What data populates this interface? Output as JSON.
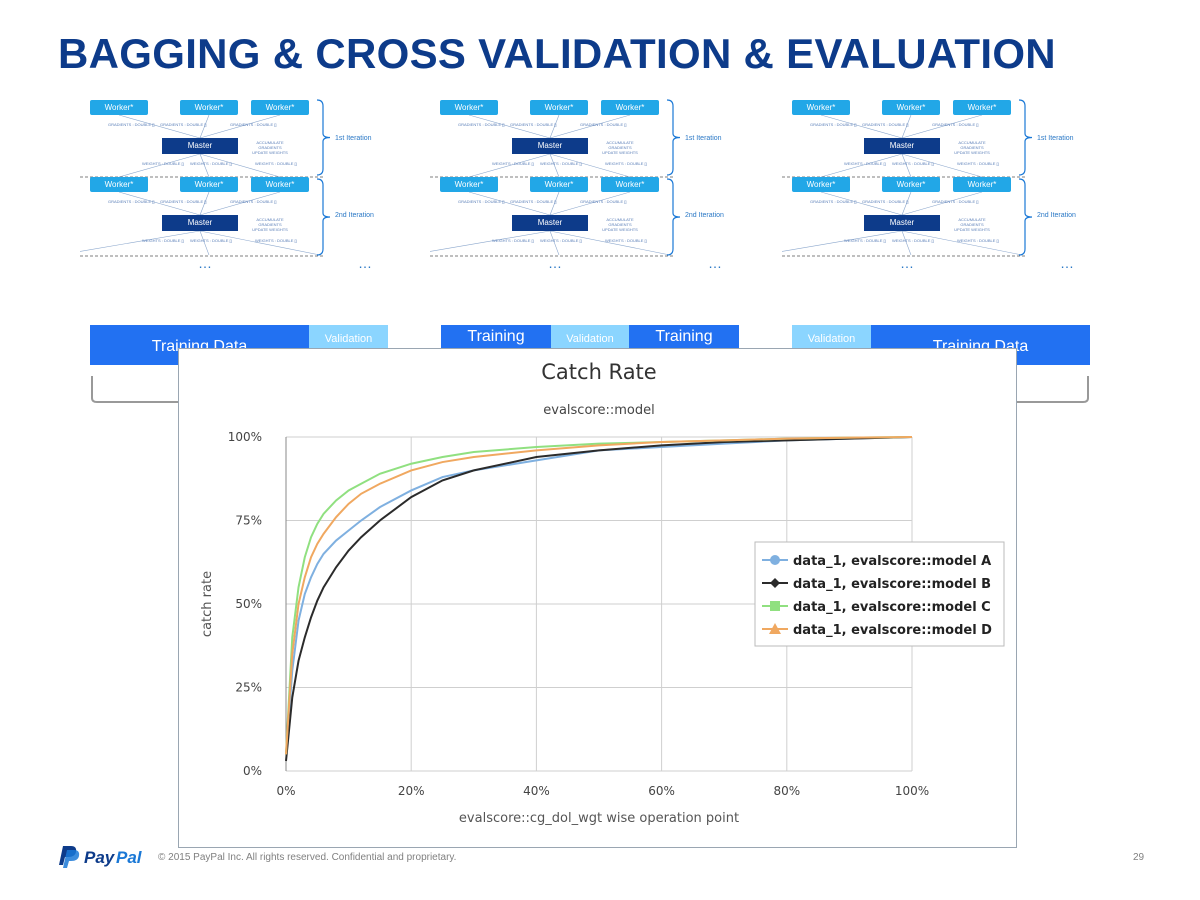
{
  "slide": {
    "title": "BAGGING & CROSS VALIDATION & EVALUATION",
    "footer": "© 2015 PayPal Inc. All rights reserved. Confidential and proprietary.",
    "page_number": "29",
    "logo_text": "PayPal"
  },
  "diagram": {
    "worker_label": "Worker*",
    "master_label": "Master",
    "gradients_label": "GRADIENTS : DOUBLE []",
    "weights_label": "WEIGHTS : DOUBLE []",
    "accumulate_label_1": "ACCUMULATE GRADIENTS",
    "accumulate_label_2": "UPDATE WEIGHTS",
    "iteration_1": "1st Iteration",
    "iteration_2": "2nd Iteration",
    "ellipsis": "…"
  },
  "folds": [
    {
      "segments": [
        {
          "type": "train",
          "label": "Training Data"
        },
        {
          "type": "val",
          "label": "Validation"
        }
      ]
    },
    {
      "segments": [
        {
          "type": "train",
          "label": "Training"
        },
        {
          "type": "val",
          "label": "Validation"
        },
        {
          "type": "train",
          "label": "Training"
        }
      ]
    },
    {
      "segments": [
        {
          "type": "val",
          "label": "Validation"
        },
        {
          "type": "train",
          "label": "Training Data"
        }
      ]
    }
  ],
  "chart_data": {
    "type": "line",
    "title": "Catch Rate",
    "subtitle": "evalscore::model",
    "xlabel": "evalscore::cg_dol_wgt wise operation point",
    "ylabel": "catch rate",
    "x_ticks": [
      "0%",
      "20%",
      "40%",
      "60%",
      "80%",
      "100%"
    ],
    "y_ticks": [
      "0%",
      "25%",
      "50%",
      "75%",
      "100%"
    ],
    "xlim": [
      0,
      100
    ],
    "ylim": [
      0,
      100
    ],
    "grid": true,
    "legend_position": "right",
    "x": [
      0,
      1,
      2,
      3,
      4,
      5,
      6,
      8,
      10,
      12,
      15,
      20,
      25,
      30,
      40,
      50,
      60,
      70,
      80,
      90,
      100
    ],
    "series": [
      {
        "name": "data_1, evalscore::model A",
        "color": "#7fb0e0",
        "marker": "circle",
        "values": [
          5,
          30,
          45,
          53,
          58,
          62,
          65,
          69,
          72,
          75,
          79,
          84,
          88,
          90,
          93,
          96,
          97,
          98,
          99,
          99.5,
          100
        ]
      },
      {
        "name": "data_1, evalscore::model B",
        "color": "#2b2b2b",
        "marker": "diamond",
        "values": [
          3,
          22,
          33,
          40,
          46,
          51,
          55,
          61,
          66,
          70,
          75,
          82,
          87,
          90,
          94,
          96,
          97.5,
          98.5,
          99,
          99.5,
          100
        ]
      },
      {
        "name": "data_1, evalscore::model C",
        "color": "#90e080",
        "marker": "square",
        "values": [
          5,
          40,
          55,
          64,
          70,
          74,
          77,
          81,
          84,
          86,
          89,
          92,
          94,
          95.5,
          97,
          98,
          98.5,
          99,
          99.5,
          99.8,
          100
        ]
      },
      {
        "name": "data_1, evalscore::model D",
        "color": "#f0a860",
        "marker": "triangle",
        "values": [
          5,
          35,
          50,
          58,
          64,
          68,
          71,
          76,
          80,
          83,
          86,
          90,
          92.5,
          94,
          96,
          97.5,
          98.5,
          99,
          99.5,
          99.8,
          100
        ]
      }
    ]
  }
}
